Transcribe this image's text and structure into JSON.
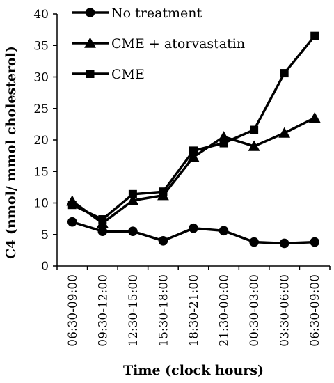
{
  "chart_data": {
    "type": "line",
    "xlabel": "Time (clock hours)",
    "ylabel": "C4 (nmol/ mmol cholesterol)",
    "ylim": [
      0,
      40
    ],
    "yticks": [
      0,
      5,
      10,
      15,
      20,
      25,
      30,
      35,
      40
    ],
    "categories": [
      "06:30-09:00",
      "09:30-12:00",
      "12:30-15:00",
      "15:30-18:00",
      "18:30-21:00",
      "21:30-00:00",
      "00:30-03:00",
      "03:30-06:00",
      "06:30-09:00"
    ],
    "grid": false,
    "legend_position": "top-left",
    "series": [
      {
        "name": "No treatment",
        "marker": "circle",
        "color": "#000000",
        "values": [
          7.0,
          5.5,
          5.5,
          4.0,
          6.0,
          5.6,
          3.8,
          3.6,
          3.8
        ]
      },
      {
        "name": "CME + atorvastatin",
        "marker": "triangle",
        "color": "#000000",
        "values": [
          10.3,
          6.8,
          10.4,
          11.2,
          17.3,
          20.5,
          19.0,
          21.1,
          23.5
        ]
      },
      {
        "name": "CME",
        "marker": "square",
        "color": "#000000",
        "values": [
          9.7,
          7.4,
          11.4,
          11.8,
          18.3,
          19.5,
          21.6,
          30.6,
          36.5
        ]
      }
    ]
  }
}
